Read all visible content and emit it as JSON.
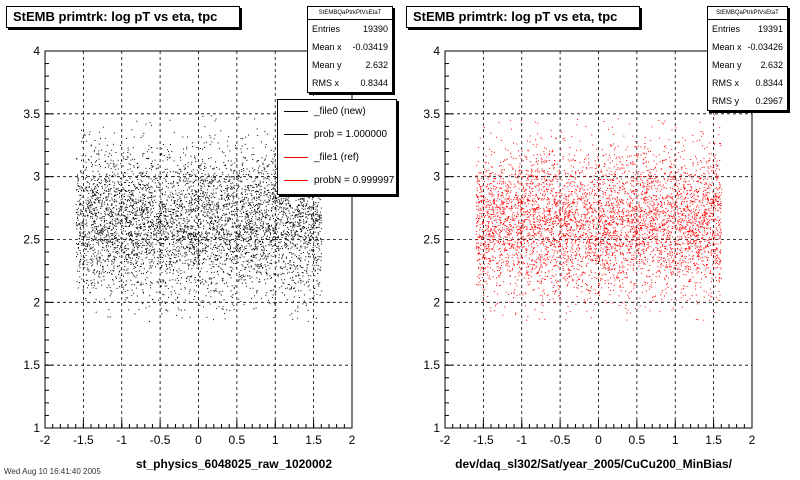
{
  "footer": "Wed Aug 10 16:41:40 2005",
  "chart_data": [
    {
      "type": "scatter",
      "title": "StEMB primtrk: log pT vs eta, tpc",
      "xlabel": "st_physics_6048025_raw_1020002",
      "ylabel": "",
      "xlim": [
        -2,
        2
      ],
      "ylim": [
        1,
        4
      ],
      "xticks": [
        "-2",
        "-1.5",
        "-1",
        "-0.5",
        "0",
        "0.5",
        "1",
        "1.5",
        "2"
      ],
      "yticks": [
        "1",
        "1.5",
        "2",
        "2.5",
        "3",
        "3.5",
        "4"
      ],
      "grid": true,
      "marker_color": "#000000",
      "distribution": {
        "eta_range": [
          -1.6,
          1.6
        ],
        "logpt_mean": 2.632,
        "logpt_rms": 0.2967,
        "entries": 19390
      },
      "stats": {
        "name": "StEMBQaPtrkPtVsEtaT",
        "rows": [
          {
            "label": "Entries",
            "value": "19390"
          },
          {
            "label": "Mean x",
            "value": "-0.03419"
          },
          {
            "label": "Mean y",
            "value": "2.632"
          },
          {
            "label": "RMS x",
            "value": "0.8344"
          }
        ]
      },
      "legend": {
        "position": "top-right",
        "entries": [
          {
            "label": "_file0 (new)",
            "color": "#000000"
          },
          {
            "label": "prob = 1.000000",
            "color": "#000000"
          },
          {
            "label": "_file1 (ref)",
            "color": "#ff0000"
          },
          {
            "label": "probN = 0.999997",
            "color": "#ff0000"
          }
        ]
      }
    },
    {
      "type": "scatter",
      "title": "StEMB primtrk: log pT vs eta, tpc",
      "xlabel": "dev/daq_sl302/Sat/year_2005/CuCu200_MinBias/",
      "ylabel": "",
      "xlim": [
        -2,
        2
      ],
      "ylim": [
        1,
        4
      ],
      "xticks": [
        "-2",
        "-1.5",
        "-1",
        "-0.5",
        "0",
        "0.5",
        "1",
        "1.5",
        "2"
      ],
      "yticks": [
        "1",
        "1.5",
        "2",
        "2.5",
        "3",
        "3.5",
        "4"
      ],
      "grid": true,
      "marker_color": "#ff0000",
      "distribution": {
        "eta_range": [
          -1.6,
          1.6
        ],
        "logpt_mean": 2.632,
        "logpt_rms": 0.2967,
        "entries": 19391
      },
      "stats": {
        "name": "StEMBQaPtrkPtVsEtaT",
        "rows": [
          {
            "label": "Entries",
            "value": "19391"
          },
          {
            "label": "Mean x",
            "value": "-0.03426"
          },
          {
            "label": "Mean y",
            "value": "2.632"
          },
          {
            "label": "RMS x",
            "value": "0.8344"
          },
          {
            "label": "RMS y",
            "value": "0.2967"
          }
        ]
      }
    }
  ]
}
